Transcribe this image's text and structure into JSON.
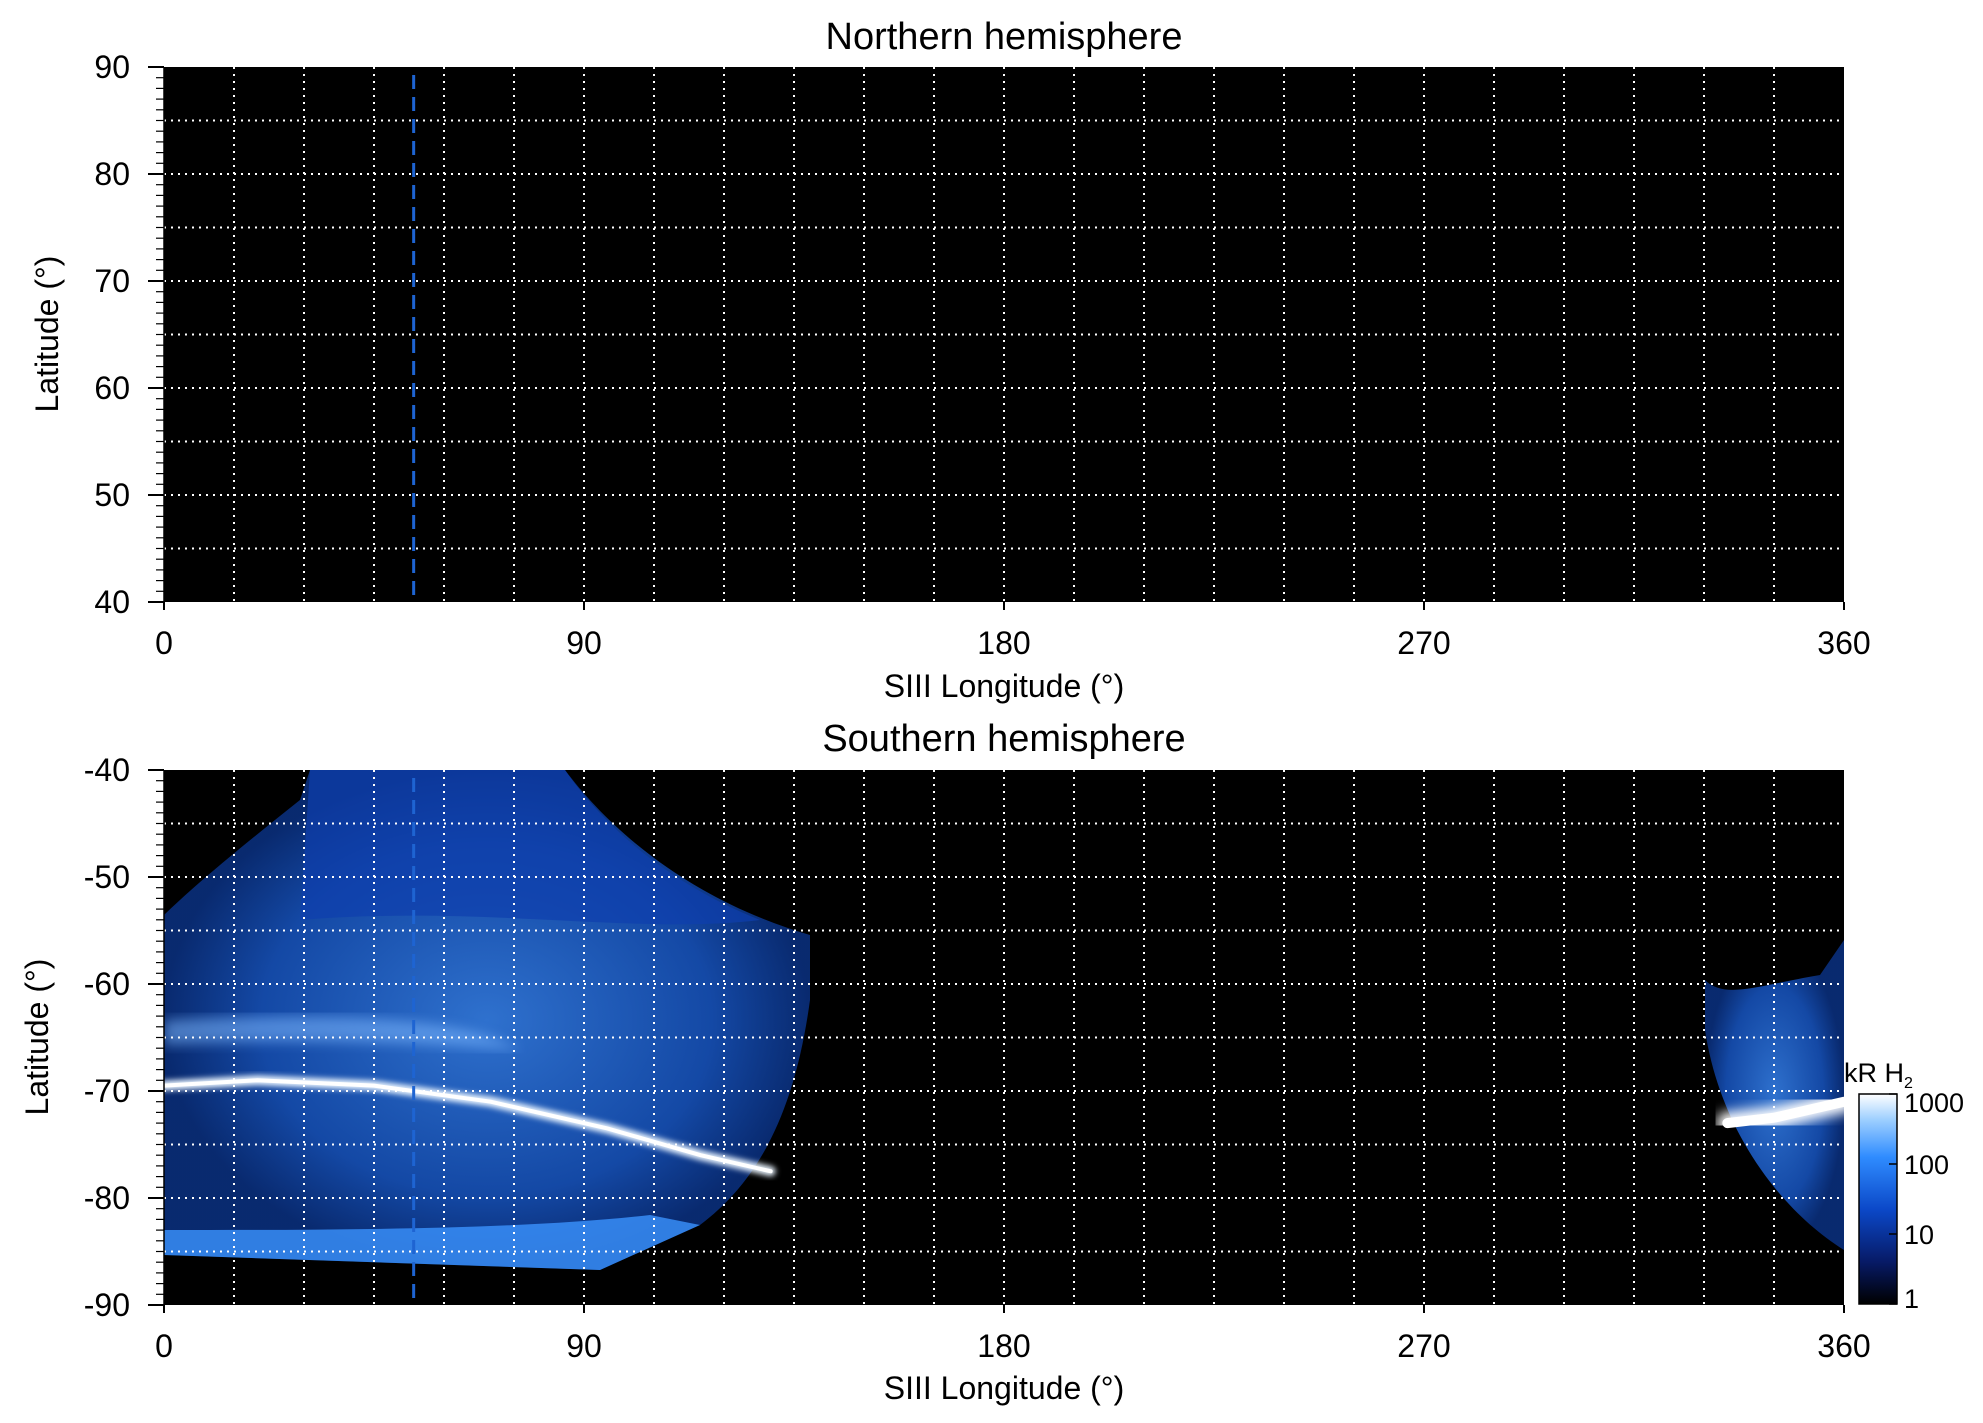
{
  "chart_data": [
    {
      "type": "heatmap",
      "title": "Northern hemisphere",
      "xlabel": "SIII Longitude (°)",
      "ylabel": "Latitude (°)",
      "xlim": [
        0,
        360
      ],
      "ylim": [
        40,
        90
      ],
      "xticks": [
        "0",
        "90",
        "180",
        "270",
        "360"
      ],
      "yticks": [
        "90",
        "80",
        "70",
        "60",
        "50",
        "40"
      ],
      "grid": true,
      "grid_step_longitude": 15,
      "grid_step_latitude": 5,
      "background": "#000000",
      "marker_longitude": 53.5,
      "marker_color": "#1e64d2",
      "emission": []
    },
    {
      "type": "heatmap",
      "title": "Southern hemisphere",
      "xlabel": "SIII Longitude (°)",
      "ylabel": "Latitude (°)",
      "xlim": [
        0,
        360
      ],
      "ylim": [
        -90,
        -40
      ],
      "xticks": [
        "0",
        "90",
        "180",
        "270",
        "360"
      ],
      "yticks": [
        "-40",
        "-50",
        "-60",
        "-70",
        "-80",
        "-90"
      ],
      "grid": true,
      "grid_step_longitude": 15,
      "grid_step_latitude": 5,
      "background": "#000000",
      "marker_longitude": 53.5,
      "marker_color": "#1e64d2",
      "emission": [
        {
          "region": "diffuse",
          "lon_range": [
            0,
            138
          ],
          "lat_range": [
            -87,
            -40
          ]
        },
        {
          "region": "main-oval",
          "lon": [
            0,
            20,
            45,
            70,
            95,
            115,
            130
          ],
          "lat": [
            -69.5,
            -69,
            -69.5,
            -71,
            -73.5,
            -76,
            -77.5
          ]
        },
        {
          "region": "main-oval",
          "lon": [
            335,
            345,
            360
          ],
          "lat": [
            -73,
            -72.5,
            -71
          ]
        },
        {
          "region": "diffuse",
          "lon_range": [
            332,
            360
          ],
          "lat_range": [
            -86,
            -56
          ]
        }
      ],
      "colorbar": {
        "label": "kR H",
        "label_sub": "2",
        "scale": "log",
        "range": [
          1,
          1000
        ],
        "ticks": [
          "1000",
          "100",
          "10",
          "1"
        ],
        "colors": [
          "#000000",
          "#071a66",
          "#0b48c8",
          "#2f8cff",
          "#9fd0ff",
          "#ffffff"
        ]
      }
    }
  ]
}
